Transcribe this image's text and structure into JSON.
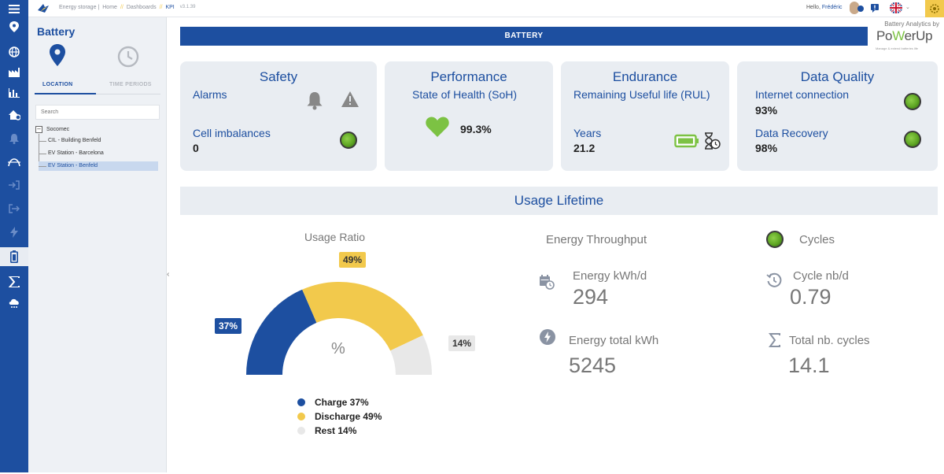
{
  "topbar": {
    "breadcrumbs": [
      "Energy storage |",
      "Home",
      "//",
      "Dashboards",
      "//",
      "KPI"
    ],
    "version": "v3.1.39",
    "greeting": "Hello,",
    "user_name": "Frédéric"
  },
  "side_panel": {
    "title": "Battery",
    "tabs": [
      "LOCATION",
      "TIME PERIODS"
    ],
    "search_placeholder": "Search",
    "tree": {
      "root": "Socomec",
      "children": [
        "CIL - Building Benfeld",
        "EV Station - Barcelona",
        "EV Station - Benfeld"
      ],
      "selected_index": 2
    }
  },
  "banner": {
    "title": "BATTERY"
  },
  "brand": {
    "top": "Battery Analytics by",
    "logo_a": "Po",
    "logo_b": "W",
    "logo_c": "erUp",
    "tagline": "Manage & extend batteries life"
  },
  "cards": {
    "safety": {
      "title": "Safety",
      "alarms_label": "Alarms",
      "cell_label": "Cell imbalances",
      "cell_value": "0"
    },
    "performance": {
      "title": "Performance",
      "soh_label": "State of Health (SoH)",
      "soh_value": "99.3%"
    },
    "endurance": {
      "title": "Endurance",
      "rul_label": "Remaining Useful life (RUL)",
      "years_label": "Years",
      "years_value": "21.2"
    },
    "data_quality": {
      "title": "Data Quality",
      "internet_label": "Internet connection",
      "internet_value": "93%",
      "recovery_label": "Data Recovery",
      "recovery_value": "98%"
    }
  },
  "usage": {
    "header": "Usage Lifetime",
    "ratio_title": "Usage Ratio",
    "center_symbol": "%",
    "charge_badge": "37%",
    "discharge_badge": "49%",
    "rest_badge": "14%",
    "gauge_fractions": {
      "charge": 0.37,
      "discharge": 0.49,
      "rest": 0.14
    },
    "legend": [
      "Charge 37%",
      "Discharge 49%",
      "Rest 14%"
    ],
    "colors": {
      "charge": "#1d4fa0",
      "discharge": "#f2c94c",
      "rest": "#e8e8e8"
    }
  },
  "energy": {
    "title": "Energy Throughput",
    "per_day_label": "Energy kWh/d",
    "per_day_value": "294",
    "total_label": "Energy total kWh",
    "total_value": "5245"
  },
  "cycles": {
    "title": "Cycles",
    "per_day_label": "Cycle nb/d",
    "per_day_value": "0.79",
    "total_label": "Total nb. cycles",
    "total_value": "14.1"
  }
}
